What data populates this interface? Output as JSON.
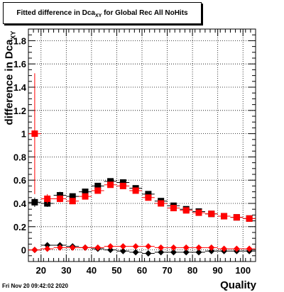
{
  "page": {
    "title_main": "Fitted difference in Dca",
    "title_sub": "XY",
    "title_rest": " for Global Rec All NoHits",
    "datestamp": "Fri Nov 20 09:42:02 2020"
  },
  "chart_data": {
    "type": "scatter",
    "title": "Fitted difference in DcaXY for Global Rec All NoHits",
    "xlabel": "Quality",
    "ylabel_main": "difference in Dca",
    "ylabel_sub": "XY",
    "xlim": [
      15,
      105
    ],
    "ylim": [
      -0.1,
      1.9
    ],
    "x_ticks": [
      20,
      30,
      40,
      50,
      60,
      70,
      80,
      90,
      100
    ],
    "y_ticks": [
      0,
      0.2,
      0.4,
      0.6,
      0.8,
      1,
      1.2,
      1.4,
      1.6,
      1.8
    ],
    "y_tick_labels": [
      "0",
      "0.2",
      "0.4",
      "0.6",
      "0.8",
      "1",
      "1.2",
      "1.4",
      "1.6",
      "1.8"
    ],
    "grid": true,
    "x": [
      17.5,
      22.5,
      27.5,
      32.5,
      37.5,
      42.5,
      47.5,
      52.5,
      57.5,
      62.5,
      67.5,
      72.5,
      77.5,
      82.5,
      87.5,
      92.5,
      97.5,
      102.5
    ],
    "series": [
      {
        "marker": "square",
        "color": "#000000",
        "values": [
          0.41,
          0.4,
          0.47,
          0.46,
          0.5,
          0.55,
          0.59,
          0.58,
          0.53,
          0.48,
          0.42,
          0.38,
          0.35,
          0.33,
          0.31,
          0.29,
          0.28,
          0.27
        ],
        "errors": [
          0.04,
          0.03,
          0.03,
          0.02,
          0.02,
          0.02,
          0.02,
          0.02,
          0.02,
          0.02,
          0.02,
          0.02,
          0.01,
          0.01,
          0.01,
          0.01,
          0.01,
          0.01
        ]
      },
      {
        "marker": "square",
        "color": "#ff0000",
        "values": [
          1.0,
          0.44,
          0.44,
          0.42,
          0.46,
          0.51,
          0.56,
          0.55,
          0.51,
          0.45,
          0.4,
          0.36,
          0.34,
          0.32,
          0.31,
          0.29,
          0.28,
          0.27
        ],
        "errors": [
          0.52,
          0.04,
          0.03,
          0.02,
          0.02,
          0.02,
          0.02,
          0.02,
          0.02,
          0.02,
          0.02,
          0.02,
          0.01,
          0.01,
          0.01,
          0.01,
          0.01,
          0.01
        ]
      },
      {
        "marker": "diamond",
        "color": "#000000",
        "values": [
          0.0,
          0.04,
          0.04,
          0.03,
          0.02,
          0.01,
          0.0,
          -0.01,
          -0.02,
          -0.03,
          -0.02,
          -0.02,
          -0.02,
          -0.02,
          -0.01,
          -0.01,
          -0.01,
          -0.01
        ],
        "errors": [
          0.02,
          0.02,
          0.01,
          0.01,
          0.01,
          0.01,
          0.01,
          0.01,
          0.01,
          0.01,
          0.01,
          0.01,
          0.01,
          0.01,
          0.01,
          0.01,
          0.01,
          0.01
        ]
      },
      {
        "marker": "diamond",
        "color": "#ff0000",
        "values": [
          0.0,
          0.01,
          0.02,
          0.02,
          0.02,
          0.02,
          0.03,
          0.03,
          0.03,
          0.03,
          0.02,
          0.02,
          0.02,
          0.02,
          0.02,
          0.01,
          0.01,
          0.01
        ],
        "errors": [
          0.02,
          0.02,
          0.01,
          0.01,
          0.01,
          0.01,
          0.01,
          0.01,
          0.01,
          0.01,
          0.01,
          0.01,
          0.01,
          0.01,
          0.01,
          0.01,
          0.01,
          0.01
        ]
      }
    ]
  }
}
